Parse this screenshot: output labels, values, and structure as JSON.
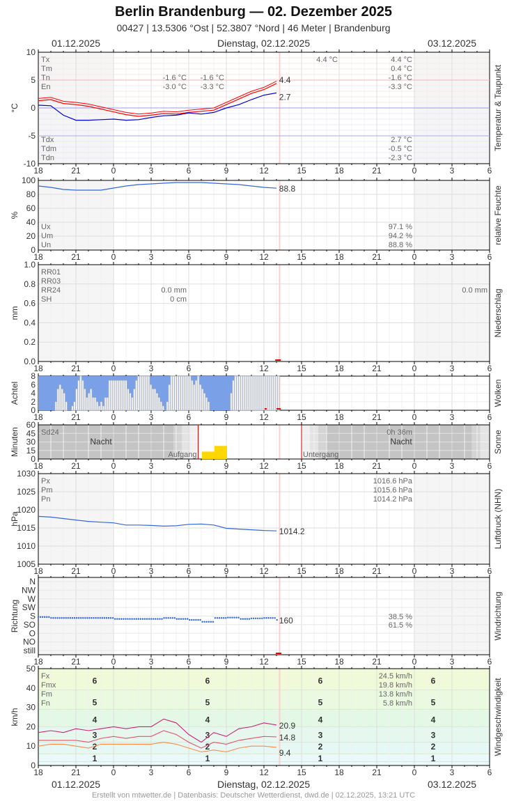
{
  "header": {
    "title": "Berlin Brandenburg  —  02. Dezember 2025",
    "subtitle": "00427  |  13.5306 °Ost  |  52.3807 °Nord  |  46 Meter  |  Brandenburg",
    "date_left": "01.12.2025",
    "date_center": "Dienstag, 02.12.2025",
    "date_right": "03.12.2025"
  },
  "footer": {
    "date_left": "01.12.2025",
    "date_center": "Dienstag, 02.12.2025",
    "date_right": "03.12.2025",
    "credit": "Erstellt von mtwetter.de | Datenbasis: Deutscher Wetterdienst, dwd.de | 02.12.2025, 13:21 UTC"
  },
  "colors": {
    "temp": "#ff0000",
    "dewpoint": "#0000dd",
    "humidity": "#3366dd",
    "pressure": "#3366dd",
    "direction": "#3366dd",
    "gust_max": "#cc2277",
    "wind_mean_max": "#666666",
    "wind_mean": "#e8506a",
    "wind_min": "#ff8844",
    "sun": "#ffd700",
    "cloud_sky": "#7aa0e8",
    "now_line": "#ffcccc"
  },
  "chart_data": [
    {
      "type": "line",
      "panel": "temperature",
      "title": "Temperatur & Taupunkt",
      "xlabel": "",
      "ylabel": "°C",
      "ylim": [
        -10,
        10
      ],
      "yticks": [
        10,
        5,
        0,
        -5,
        -10
      ],
      "x_ticks": [
        "18",
        "21",
        "0",
        "3",
        "6",
        "9",
        "12",
        "15",
        "18",
        "21",
        "0",
        "3",
        "6"
      ],
      "series": [
        {
          "name": "Temperatur",
          "last_value": "4.4",
          "x_hours": [
            0,
            1,
            2,
            3,
            4,
            5,
            6,
            7,
            8,
            9,
            10,
            11,
            12,
            13,
            14,
            15,
            16,
            17,
            18,
            19
          ],
          "values": [
            1.3,
            1.5,
            0.8,
            0.6,
            0.3,
            -0.2,
            -0.7,
            -1.2,
            -1.5,
            -1.3,
            -1.0,
            -1.1,
            -0.8,
            -0.6,
            -0.4,
            0.6,
            1.6,
            2.6,
            3.3,
            4.4
          ]
        },
        {
          "name": "Taupunkt",
          "last_value": "2.7",
          "x_hours": [
            0,
            1,
            2,
            3,
            4,
            5,
            6,
            7,
            8,
            9,
            10,
            11,
            12,
            13,
            14,
            15,
            16,
            17,
            18,
            19
          ],
          "values": [
            0.5,
            0.4,
            -1.3,
            -2.2,
            -2.2,
            -2.1,
            -2.0,
            -2.2,
            -2.1,
            -1.7,
            -1.4,
            -1.3,
            -0.9,
            -1.1,
            -0.8,
            0.0,
            0.6,
            1.5,
            2.3,
            2.7
          ]
        }
      ],
      "stats_labels": [
        "Tx",
        "Tm",
        "Tn",
        "En",
        "Tdx",
        "Tdm",
        "Tdn"
      ],
      "stats_day1": {
        "Tn": "-1.6 °C",
        "En": "-3.0 °C"
      },
      "stats_day1b": {
        "Tn": "-1.6 °C",
        "En": "-3.3 °C"
      },
      "stats_day2_tx": "4.4 °C",
      "stats_day2": {
        "Tx": "4.4 °C",
        "Tm": "0.4 °C",
        "Tn": "-1.6 °C",
        "En": "-3.3 °C",
        "Tdx": "2.7 °C",
        "Tdm": "-0.5 °C",
        "Tdn": "-2.3 °C"
      }
    },
    {
      "type": "line",
      "panel": "humidity",
      "title": "relative Feuchte",
      "ylabel": "%",
      "ylim": [
        0,
        100
      ],
      "yticks": [
        100,
        80,
        60,
        40,
        20,
        0
      ],
      "series": [
        {
          "name": "relative Feuchte",
          "last_value": "88.8",
          "x_hours": [
            0,
            1,
            2,
            3,
            4,
            5,
            6,
            7,
            8,
            9,
            10,
            11,
            12,
            13,
            14,
            15,
            16,
            17,
            18,
            19
          ],
          "values": [
            92,
            90,
            87,
            86,
            86,
            86,
            89,
            92,
            94,
            95,
            96,
            97,
            97,
            97,
            96,
            95,
            94,
            92,
            90,
            88.8
          ]
        }
      ],
      "stats_labels": [
        "Ux",
        "Um",
        "Un"
      ],
      "stats": {
        "Ux": "97.1 %",
        "Um": "94.2 %",
        "Un": "88.8 %"
      }
    },
    {
      "type": "bar",
      "panel": "precipitation",
      "title": "Niederschlag",
      "ylabel": "mm",
      "ylim": [
        0,
        1.0
      ],
      "yticks": [
        "1.0",
        "0.8",
        "0.6",
        "0.4",
        "0.2",
        "0.0"
      ],
      "series": [
        {
          "name": "Niederschlag",
          "values": []
        }
      ],
      "stats_labels": [
        "RR01",
        "RR03",
        "RR24",
        "SH"
      ],
      "stats_day1": {
        "RR24": "0.0 mm",
        "SH": "0 cm"
      },
      "stats_day2": {
        "RR24": "0.0 mm"
      }
    },
    {
      "type": "bar",
      "panel": "clouds",
      "title": "Wolken",
      "ylabel": "Achtel",
      "ylim": [
        0,
        8
      ],
      "yticks": [
        8,
        6,
        4,
        2,
        0
      ],
      "series": [
        {
          "name": "Bewölkung (Achtel)",
          "x_hours_start": 0,
          "step_hours": 0.1667,
          "values": [
            0,
            0,
            0,
            0,
            0,
            0,
            0,
            0,
            2,
            5,
            6,
            5,
            4,
            2,
            0,
            0,
            1,
            2,
            5,
            7,
            8,
            7,
            5,
            3,
            4,
            5,
            3,
            3,
            2,
            1,
            2,
            1,
            3,
            3,
            7,
            7,
            7,
            7,
            7,
            7,
            7,
            7,
            7,
            5,
            4,
            3,
            5,
            7,
            8,
            8,
            8,
            8,
            8,
            8,
            6,
            5,
            5,
            4,
            3,
            2,
            1,
            0,
            2,
            6,
            8,
            8,
            8,
            8,
            8,
            8,
            8,
            8,
            8,
            8,
            7,
            6,
            7,
            8,
            6,
            5,
            4,
            3,
            2,
            0,
            0,
            0,
            0,
            0,
            0,
            0,
            0,
            0,
            0,
            4,
            7,
            8,
            8,
            8,
            8,
            8,
            8,
            8,
            8,
            8,
            8,
            8,
            8,
            8,
            8,
            8,
            8,
            8,
            8,
            8,
            8,
            8,
            8
          ]
        }
      ]
    },
    {
      "type": "bar",
      "panel": "sunshine",
      "title": "Sonne",
      "ylabel": "Minuten",
      "ylim": [
        0,
        60
      ],
      "yticks": [
        60,
        45,
        30,
        15,
        0
      ],
      "series": [
        {
          "name": "Sonnenscheindauer",
          "x_hours": [
            13,
            14
          ],
          "values": [
            13,
            23
          ]
        }
      ],
      "annotations": {
        "night": "Nacht",
        "sunrise": "Aufgang",
        "sunset": "Untergang",
        "sunrise_hour": 12.75,
        "sunset_hour": 21
      },
      "stats_labels": [
        "Sd24"
      ],
      "stats": {
        "Sd24": "0h 36m"
      }
    },
    {
      "type": "line",
      "panel": "pressure",
      "title": "Luftdruck (NHN)",
      "ylabel": "hPa",
      "ylim": [
        1005,
        1030
      ],
      "yticks": [
        1030,
        1025,
        1020,
        1015,
        1010,
        1005
      ],
      "series": [
        {
          "name": "Luftdruck",
          "last_value": "1014.2",
          "x_hours": [
            0,
            1,
            2,
            3,
            4,
            5,
            6,
            7,
            8,
            9,
            10,
            11,
            12,
            13,
            14,
            15,
            16,
            17,
            18,
            19
          ],
          "values": [
            1018.2,
            1018.0,
            1017.6,
            1017.2,
            1016.8,
            1016.6,
            1016.4,
            1015.8,
            1015.8,
            1015.7,
            1015.5,
            1015.6,
            1016.0,
            1016.1,
            1015.8,
            1014.9,
            1014.7,
            1014.5,
            1014.3,
            1014.2
          ]
        }
      ],
      "stats_labels": [
        "Px",
        "Pm",
        "Pn"
      ],
      "stats": {
        "Px": "1016.6 hPa",
        "Pm": "1015.6 hPa",
        "Pn": "1014.2 hPa"
      }
    },
    {
      "type": "scatter",
      "panel": "wind_direction",
      "title": "Windrichtung",
      "ylabel": "Richtung",
      "yticks": [
        "N",
        "NW",
        "W",
        "SW",
        "S",
        "SO",
        "O",
        "NO",
        "still"
      ],
      "series": [
        {
          "name": "Windrichtung",
          "last_value": "160",
          "x_hours": [
            0,
            1,
            2,
            3,
            4,
            5,
            6,
            7,
            8,
            9,
            10,
            11,
            12,
            13,
            14,
            15,
            16,
            17,
            18,
            19
          ],
          "values": [
            175,
            170,
            170,
            170,
            170,
            170,
            165,
            165,
            165,
            165,
            170,
            165,
            160,
            150,
            170,
            172,
            165,
            168,
            170,
            160
          ]
        }
      ],
      "stats": {
        "S": "38.5 %",
        "SO": "61.5 %"
      }
    },
    {
      "type": "line",
      "panel": "wind_speed",
      "title": "Windgeschwindigkeit",
      "ylabel": "km/h",
      "ylim": [
        0,
        50
      ],
      "yticks": [
        50,
        40,
        30,
        20,
        10,
        0
      ],
      "beaufort_labels": [
        "6",
        "5",
        "4",
        "3",
        "2",
        "1"
      ],
      "series": [
        {
          "name": "Fx",
          "last_value": "20.9",
          "x_hours": [
            0,
            1,
            2,
            3,
            4,
            5,
            6,
            7,
            8,
            9,
            10,
            11,
            12,
            13,
            14,
            15,
            16,
            17,
            18,
            19
          ],
          "values": [
            17,
            18,
            17,
            19,
            18,
            19,
            20,
            19,
            20,
            20,
            24,
            22,
            16,
            12,
            17,
            15,
            19,
            20,
            22,
            20.9
          ]
        },
        {
          "name": "Fm",
          "last_value": "14.8",
          "x_hours": [
            0,
            1,
            2,
            3,
            4,
            5,
            6,
            7,
            8,
            9,
            10,
            11,
            12,
            13,
            14,
            15,
            16,
            17,
            18,
            19
          ],
          "values": [
            13,
            13,
            13,
            13,
            12,
            14,
            15,
            14,
            15,
            15,
            18,
            16,
            12,
            9,
            12,
            11,
            13,
            14,
            15,
            14.8
          ]
        },
        {
          "name": "Fn",
          "last_value": "9.4",
          "x_hours": [
            0,
            1,
            2,
            3,
            4,
            5,
            6,
            7,
            8,
            9,
            10,
            11,
            12,
            13,
            14,
            15,
            16,
            17,
            18,
            19
          ],
          "values": [
            10,
            11,
            11,
            10,
            9,
            11,
            11,
            11,
            11,
            11,
            12,
            11,
            9,
            7,
            8,
            7,
            9,
            10,
            10,
            9.4
          ]
        }
      ],
      "stats_labels": [
        "Fx",
        "Fmx",
        "Fm",
        "Fn"
      ],
      "stats": {
        "Fx": "24.5 km/h",
        "Fmx": "19.8 km/h",
        "Fm": "13.8 km/h",
        "Fn": "5.8 km/h"
      }
    }
  ]
}
